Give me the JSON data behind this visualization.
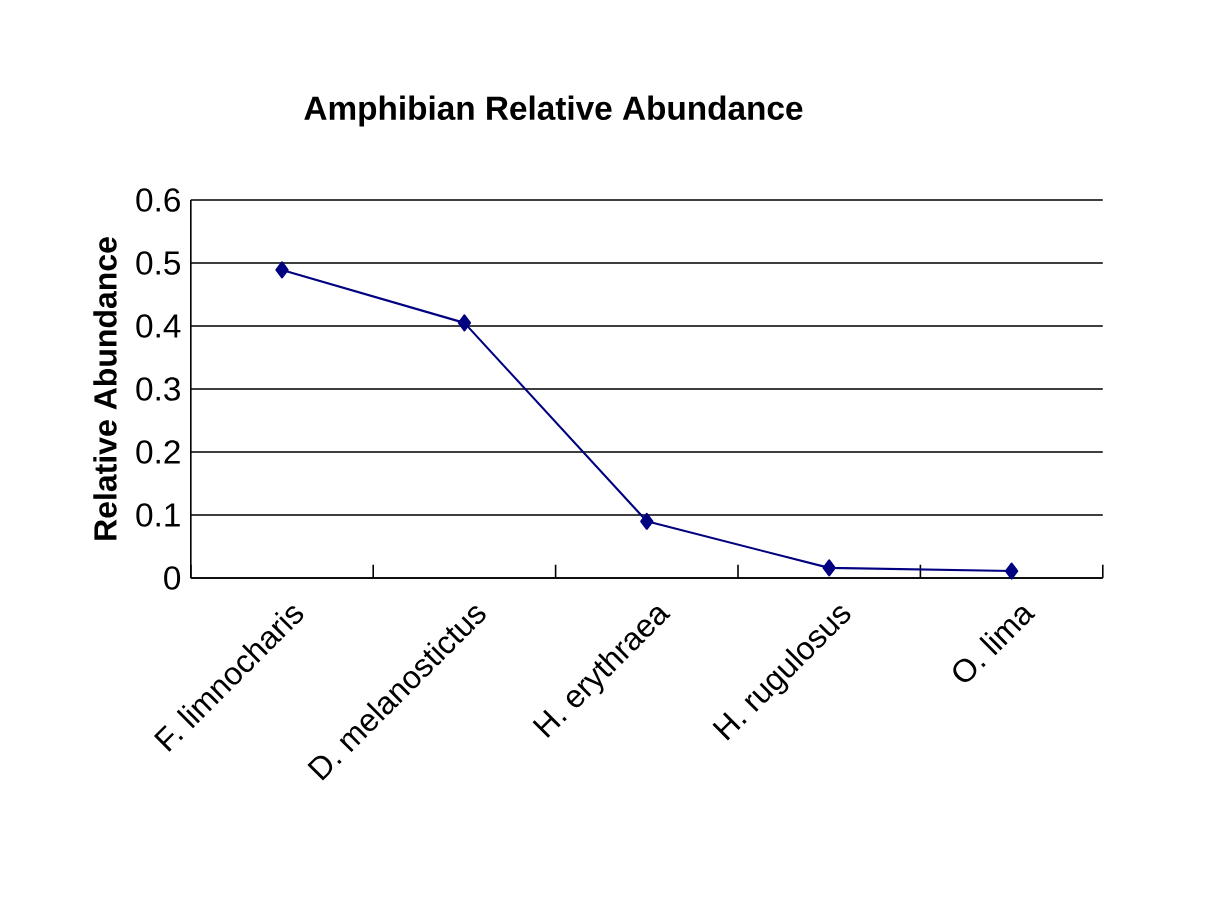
{
  "chart_data": {
    "type": "line",
    "title": "Amphibian Relative Abundance",
    "ylabel": "Relative Abundance",
    "categories": [
      "F. limnocharis",
      "D. melanostictus",
      "H. erythraea",
      "H. rugulosus",
      "O. lima"
    ],
    "series": [
      {
        "color": "#000080",
        "values": [
          0.489,
          0.405,
          0.09,
          0.016,
          0.011
        ]
      }
    ],
    "ylim": [
      0,
      0.6
    ],
    "yticks": [
      0,
      0.1,
      0.2,
      0.3,
      0.4,
      0.5,
      0.6
    ],
    "grid": "y",
    "marker": "diamond",
    "line_style": "solid"
  }
}
